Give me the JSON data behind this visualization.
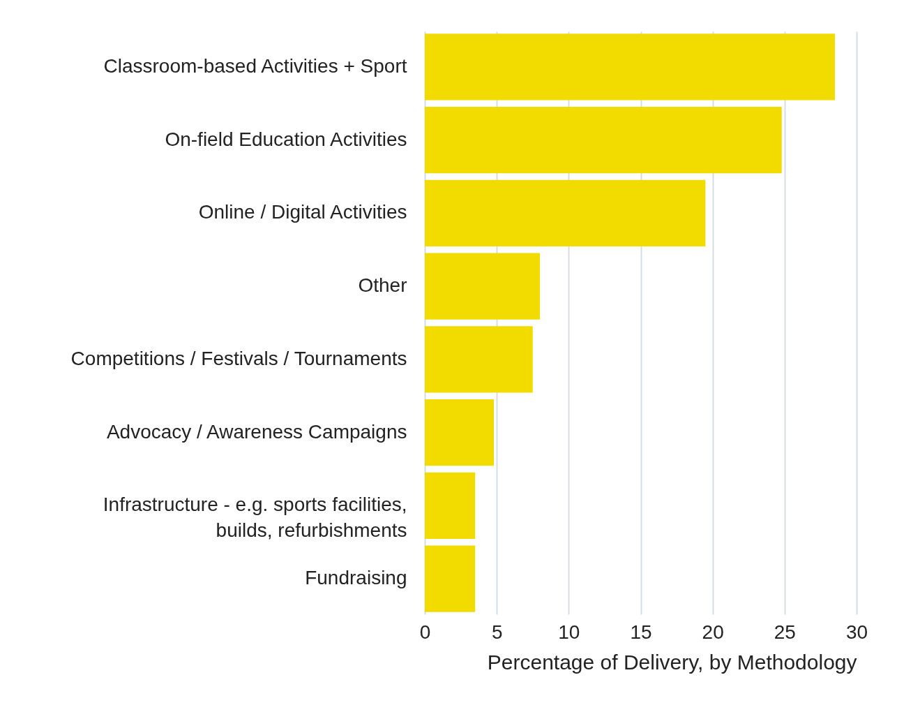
{
  "chart_data": {
    "type": "bar",
    "orientation": "horizontal",
    "categories": [
      "Classroom-based Activities + Sport",
      "On-field Education Activities",
      "Online / Digital Activities",
      "Other",
      "Competitions / Festivals / Tournaments",
      "Advocacy / Awareness Campaigns",
      "Infrastructure - e.g. sports facilities, builds, refurbishments",
      "Fundraising"
    ],
    "values": [
      28.5,
      24.8,
      19.5,
      8.0,
      7.5,
      4.8,
      3.5,
      3.5
    ],
    "color": "#f2dc00",
    "xlabel": "Percentage of Delivery, by Methodology",
    "xlim": [
      0,
      30
    ],
    "xticks": [
      0,
      5,
      10,
      15,
      20,
      25,
      30
    ],
    "grid": "x"
  }
}
